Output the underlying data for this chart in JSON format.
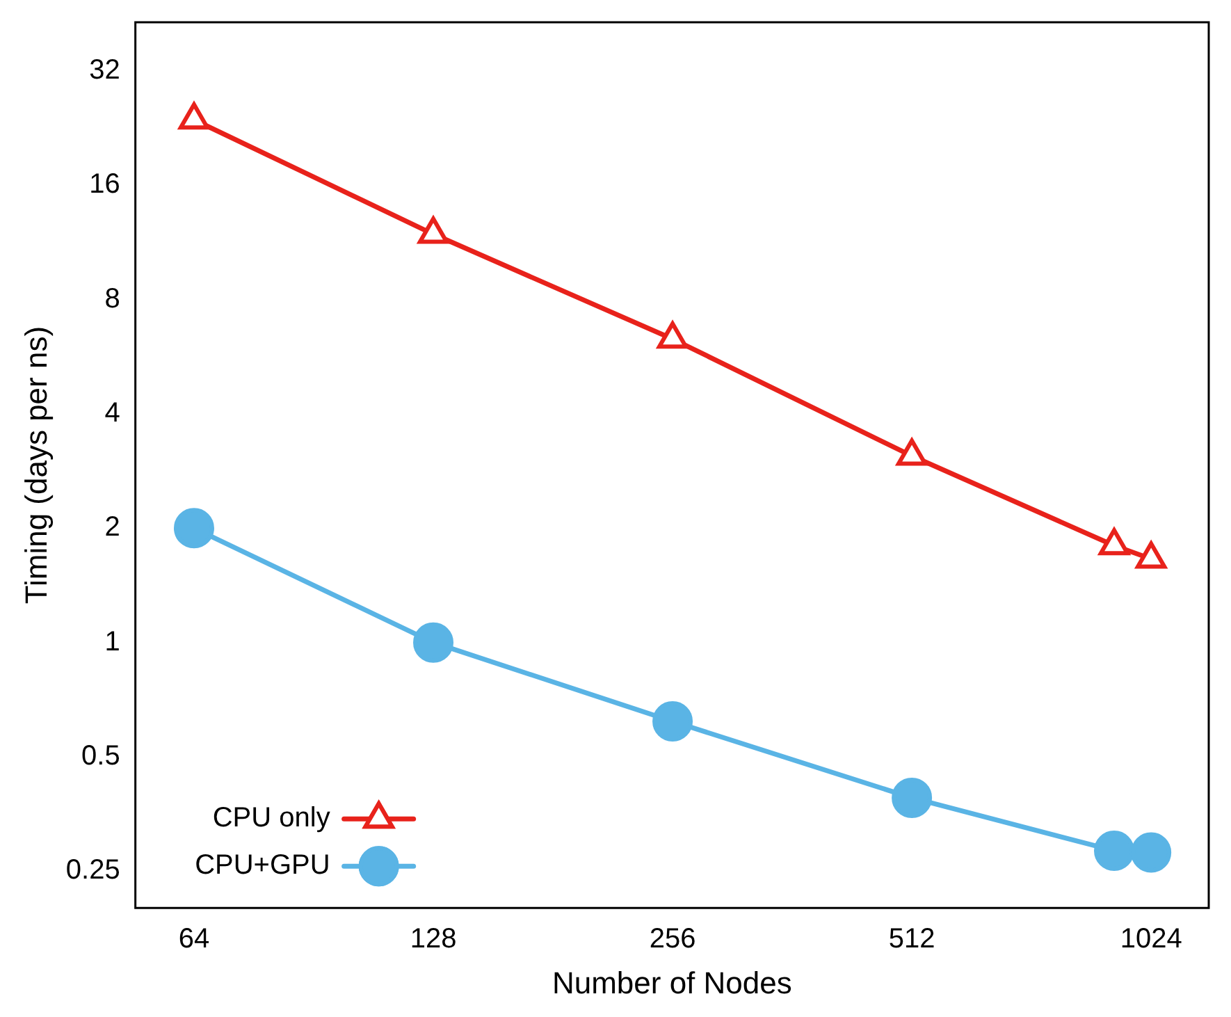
{
  "chart_data": {
    "type": "line",
    "xlabel": "Number of Nodes",
    "ylabel": "Timing (days per ns)",
    "log": "xy",
    "grid": false,
    "legend": "bottom left",
    "xlim": [
      54,
      1210
    ],
    "xticks": [
      64,
      128,
      256,
      512,
      1024
    ],
    "ylim": [
      0.2,
      43
    ],
    "yticks": [
      0.25,
      0.5,
      1,
      2,
      4,
      8,
      16,
      32
    ],
    "series": [
      {
        "name": "CPU only",
        "color": "#e8221b",
        "marker": "triangle",
        "x": [
          64,
          128,
          256,
          512,
          920,
          1024
        ],
        "values": [
          23.8,
          11.9,
          6.3,
          3.1,
          1.8,
          1.66
        ]
      },
      {
        "name": "CPU+GPU",
        "color": "#5ab4e5",
        "marker": "circle",
        "x": [
          64,
          128,
          256,
          512,
          920,
          1024
        ],
        "values": [
          2,
          1,
          0.62,
          0.39,
          0.283,
          0.28
        ]
      }
    ]
  }
}
